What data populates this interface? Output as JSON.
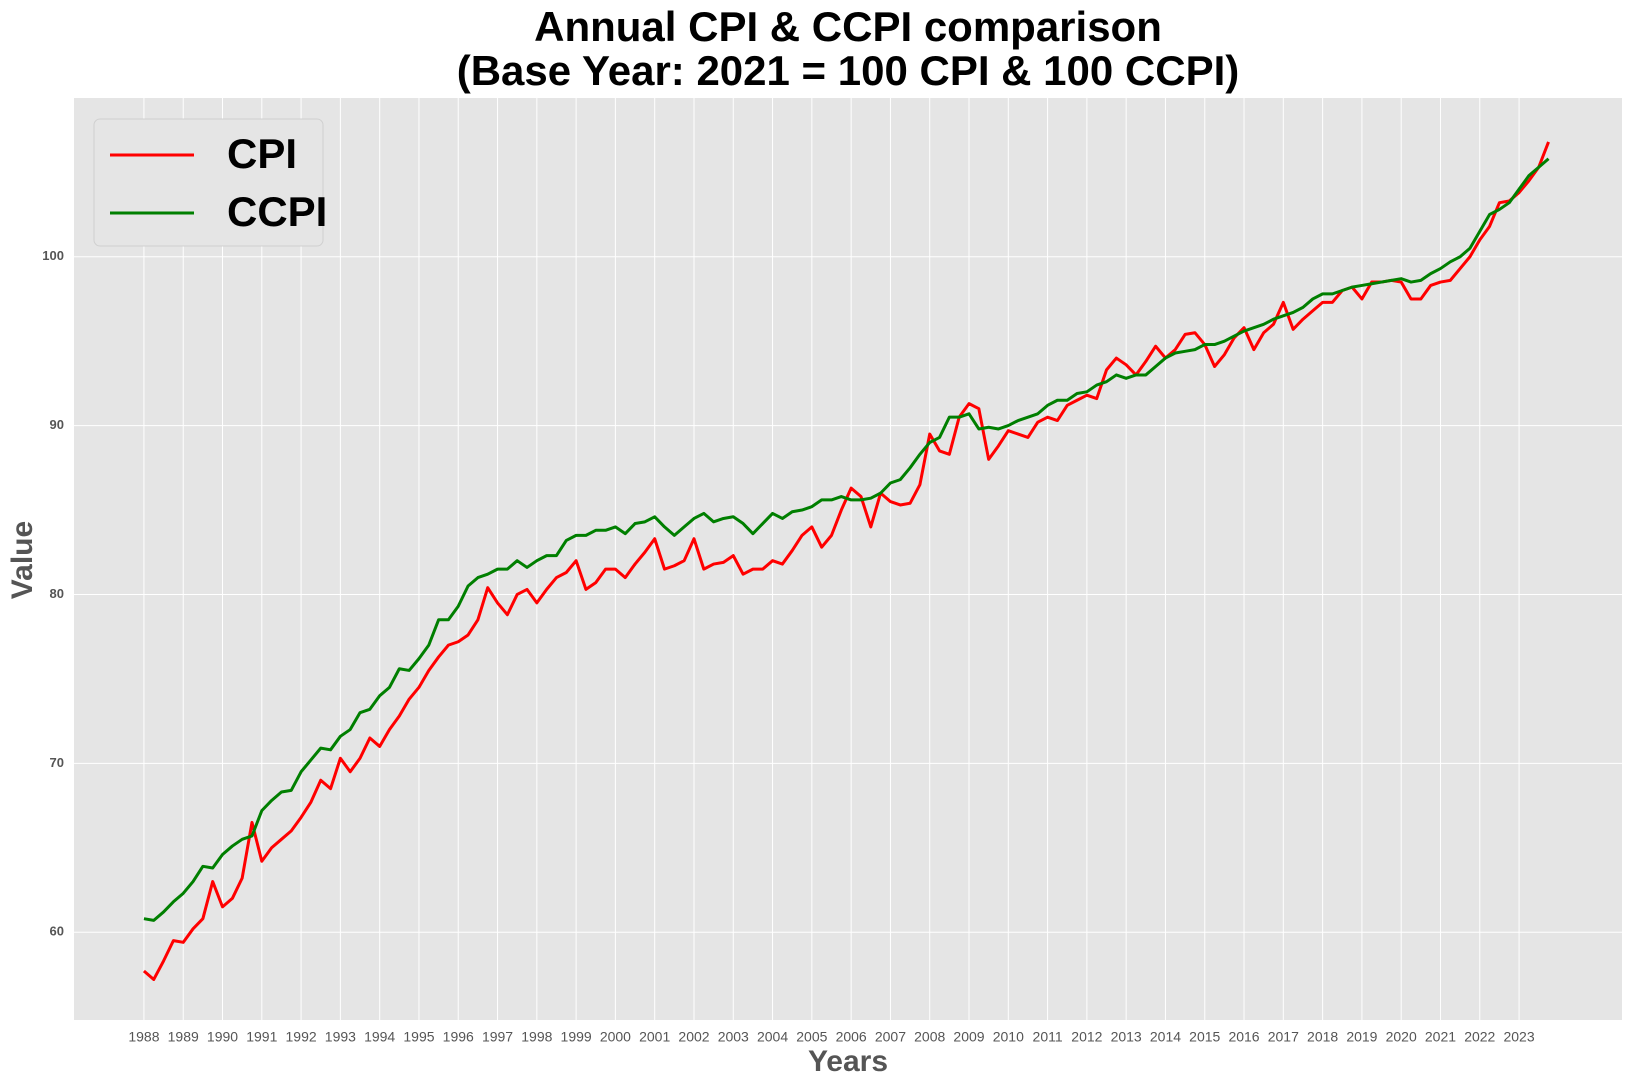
{
  "chart_data": {
    "type": "line",
    "title": [
      "Annual CPI & CCPI comparison",
      "(Base Year: 2021 = 100 CPI & 100 CCPI)"
    ],
    "xlabel": "Years",
    "ylabel": "Value",
    "x": [
      1988,
      1988.25,
      1988.5,
      1988.75,
      1989,
      1989.25,
      1989.5,
      1989.75,
      1990,
      1990.25,
      1990.5,
      1990.75,
      1991,
      1991.25,
      1991.5,
      1991.75,
      1992,
      1992.25,
      1992.5,
      1992.75,
      1993,
      1993.25,
      1993.5,
      1993.75,
      1994,
      1994.25,
      1994.5,
      1994.75,
      1995,
      1995.25,
      1995.5,
      1995.75,
      1996,
      1996.25,
      1996.5,
      1996.75,
      1997,
      1997.25,
      1997.5,
      1997.75,
      1998,
      1998.25,
      1998.5,
      1998.75,
      1999,
      1999.25,
      1999.5,
      1999.75,
      2000,
      2000.25,
      2000.5,
      2000.75,
      2001,
      2001.25,
      2001.5,
      2001.75,
      2002,
      2002.25,
      2002.5,
      2002.75,
      2003,
      2003.25,
      2003.5,
      2003.75,
      2004,
      2004.25,
      2004.5,
      2004.75,
      2005,
      2005.25,
      2005.5,
      2005.75,
      2006,
      2006.25,
      2006.5,
      2006.75,
      2007,
      2007.25,
      2007.5,
      2007.75,
      2008,
      2008.25,
      2008.5,
      2008.75,
      2009,
      2009.25,
      2009.5,
      2009.75,
      2010,
      2010.25,
      2010.5,
      2010.75,
      2011,
      2011.25,
      2011.5,
      2011.75,
      2012,
      2012.25,
      2012.5,
      2012.75,
      2013,
      2013.25,
      2013.5,
      2013.75,
      2014,
      2014.25,
      2014.5,
      2014.75,
      2015,
      2015.25,
      2015.5,
      2015.75,
      2016,
      2016.25,
      2016.5,
      2016.75,
      2017,
      2017.25,
      2017.5,
      2017.75,
      2018,
      2018.25,
      2018.5,
      2018.75,
      2019,
      2019.25,
      2019.5,
      2019.75,
      2020,
      2020.25,
      2020.5,
      2020.75,
      2021,
      2021.25,
      2021.5,
      2021.75,
      2022,
      2022.25,
      2022.5,
      2022.75,
      2023,
      2023.25,
      2023.5,
      2023.75
    ],
    "series": [
      {
        "name": "CPI",
        "color": "#ff0000",
        "values": [
          57.7,
          57.2,
          58.3,
          59.5,
          59.4,
          60.2,
          60.8,
          63.0,
          61.5,
          62.0,
          63.2,
          66.5,
          64.2,
          65.0,
          65.5,
          66.0,
          66.8,
          67.7,
          69.0,
          68.5,
          70.3,
          69.5,
          70.3,
          71.5,
          71.0,
          72.0,
          72.8,
          73.8,
          74.5,
          75.5,
          76.3,
          77.0,
          77.2,
          77.6,
          78.5,
          80.4,
          79.5,
          78.8,
          80.0,
          80.3,
          79.5,
          80.3,
          81.0,
          81.3,
          82.0,
          80.3,
          80.7,
          81.5,
          81.5,
          81.0,
          81.8,
          82.5,
          83.3,
          81.5,
          81.7,
          82.0,
          83.3,
          81.5,
          81.8,
          81.9,
          82.3,
          81.2,
          81.5,
          81.5,
          82.0,
          81.8,
          82.6,
          83.5,
          84.0,
          82.8,
          83.5,
          85.0,
          86.3,
          85.8,
          84.0,
          86.0,
          85.5,
          85.3,
          85.4,
          86.5,
          89.5,
          88.5,
          88.3,
          90.5,
          91.3,
          91.0,
          88.0,
          88.8,
          89.7,
          89.5,
          89.3,
          90.2,
          90.5,
          90.3,
          91.2,
          91.5,
          91.8,
          91.6,
          93.3,
          94.0,
          93.6,
          93.0,
          93.8,
          94.7,
          94.0,
          94.5,
          95.4,
          95.5,
          94.8,
          93.5,
          94.2,
          95.2,
          95.8,
          94.5,
          95.5,
          96.0,
          97.3,
          95.7,
          96.3,
          96.8,
          97.3,
          97.3,
          98.0,
          98.2,
          97.5,
          98.5,
          98.5,
          98.6,
          98.5,
          97.5,
          97.5,
          98.3,
          98.5,
          98.6,
          99.3,
          100.0,
          101.0,
          101.8,
          103.2,
          103.3,
          103.8,
          104.5,
          105.3,
          106.8
        ]
      },
      {
        "name": "CCPI",
        "color": "#007f00",
        "values": [
          60.8,
          60.7,
          61.2,
          61.8,
          62.3,
          63.0,
          63.9,
          63.8,
          64.6,
          65.1,
          65.5,
          65.7,
          67.2,
          67.8,
          68.3,
          68.4,
          69.5,
          70.2,
          70.9,
          70.8,
          71.6,
          72.0,
          73.0,
          73.2,
          74.0,
          74.5,
          75.6,
          75.5,
          76.2,
          77.0,
          78.5,
          78.5,
          79.3,
          80.5,
          81.0,
          81.2,
          81.5,
          81.5,
          82.0,
          81.6,
          82.0,
          82.3,
          82.3,
          83.2,
          83.5,
          83.5,
          83.8,
          83.8,
          84.0,
          83.6,
          84.2,
          84.3,
          84.6,
          84.0,
          83.5,
          84.0,
          84.5,
          84.8,
          84.3,
          84.5,
          84.6,
          84.2,
          83.6,
          84.2,
          84.8,
          84.5,
          84.9,
          85.0,
          85.2,
          85.6,
          85.6,
          85.8,
          85.6,
          85.6,
          85.7,
          86.0,
          86.6,
          86.8,
          87.5,
          88.3,
          89.0,
          89.3,
          90.5,
          90.5,
          90.7,
          89.8,
          89.9,
          89.8,
          90.0,
          90.3,
          90.5,
          90.7,
          91.2,
          91.5,
          91.5,
          91.9,
          92.0,
          92.4,
          92.6,
          93.0,
          92.8,
          93.0,
          93.0,
          93.5,
          94.0,
          94.3,
          94.4,
          94.5,
          94.8,
          94.8,
          95.0,
          95.3,
          95.6,
          95.8,
          96.0,
          96.3,
          96.5,
          96.7,
          97.0,
          97.5,
          97.8,
          97.8,
          98.0,
          98.2,
          98.3,
          98.4,
          98.5,
          98.6,
          98.7,
          98.5,
          98.6,
          99.0,
          99.3,
          99.7,
          100.0,
          100.5,
          101.5,
          102.5,
          102.8,
          103.2,
          104.0,
          104.8,
          105.3,
          105.8
        ]
      }
    ],
    "xlim": [
      1986.22,
      2025.62
    ],
    "ylim": [
      54.8,
      109.4
    ],
    "xticks": [
      1988,
      1989,
      1990,
      1991,
      1992,
      1993,
      1994,
      1995,
      1996,
      1997,
      1998,
      1999,
      2000,
      2001,
      2002,
      2003,
      2004,
      2005,
      2006,
      2007,
      2008,
      2009,
      2010,
      2011,
      2012,
      2013,
      2014,
      2015,
      2016,
      2017,
      2018,
      2019,
      2020,
      2021,
      2022,
      2023
    ],
    "yticks": [
      60,
      70,
      80,
      90,
      100
    ],
    "grid": true,
    "legend": "upper left"
  }
}
